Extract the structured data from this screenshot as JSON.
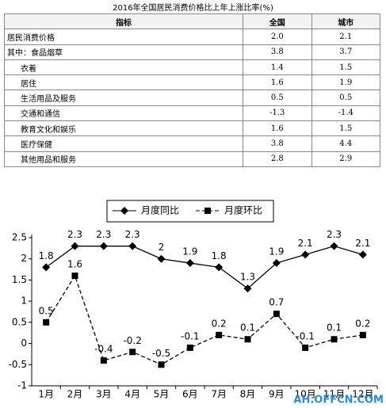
{
  "table": {
    "title": "2016年全国居民消费价格比上年上涨比率(%)",
    "header": [
      "指标",
      "全国",
      "城市"
    ],
    "rows": [
      [
        "居民消费价格",
        "2.0",
        "2.1"
      ],
      [
        "其中：食品烟草",
        "3.8",
        "3.7"
      ],
      [
        "衣着",
        "1.4",
        "1.5"
      ],
      [
        "居住",
        "1.6",
        "1.9"
      ],
      [
        "生活用品及服务",
        "0.5",
        "0.5"
      ],
      [
        "交通和通信",
        "-1.3",
        "-1.4"
      ],
      [
        "教育文化和娱乐",
        "1.6",
        "1.5"
      ],
      [
        "医疗保健",
        "3.8",
        "4.4"
      ],
      [
        "其他用品和服务",
        "2.8",
        "2.9"
      ]
    ]
  },
  "chart_data": {
    "type": "line",
    "categories": [
      "1月",
      "2月",
      "3月",
      "4月",
      "5月",
      "6月",
      "7月",
      "8月",
      "9月",
      "10月",
      "11月",
      "12月"
    ],
    "series": [
      {
        "name": "月度同比",
        "color": "#000000",
        "dash": false,
        "marker": "diamond",
        "values": [
          1.8,
          2.3,
          2.3,
          2.3,
          2,
          1.9,
          1.8,
          1.3,
          1.9,
          2.1,
          2.3,
          2.1
        ]
      },
      {
        "name": "月度环比",
        "color": "#000000",
        "dash": true,
        "marker": "square",
        "values": [
          0.5,
          1.6,
          -0.4,
          -0.2,
          -0.5,
          -0.1,
          0.2,
          0.1,
          0.7,
          -0.1,
          0.1,
          0.2
        ]
      }
    ],
    "ylim": [
      -1,
      2.5
    ],
    "yticks": [
      -1,
      -0.5,
      0,
      0.5,
      1,
      1.5,
      2,
      2.5
    ],
    "grid": false,
    "watermark": "AH.OFFCN.COM"
  }
}
